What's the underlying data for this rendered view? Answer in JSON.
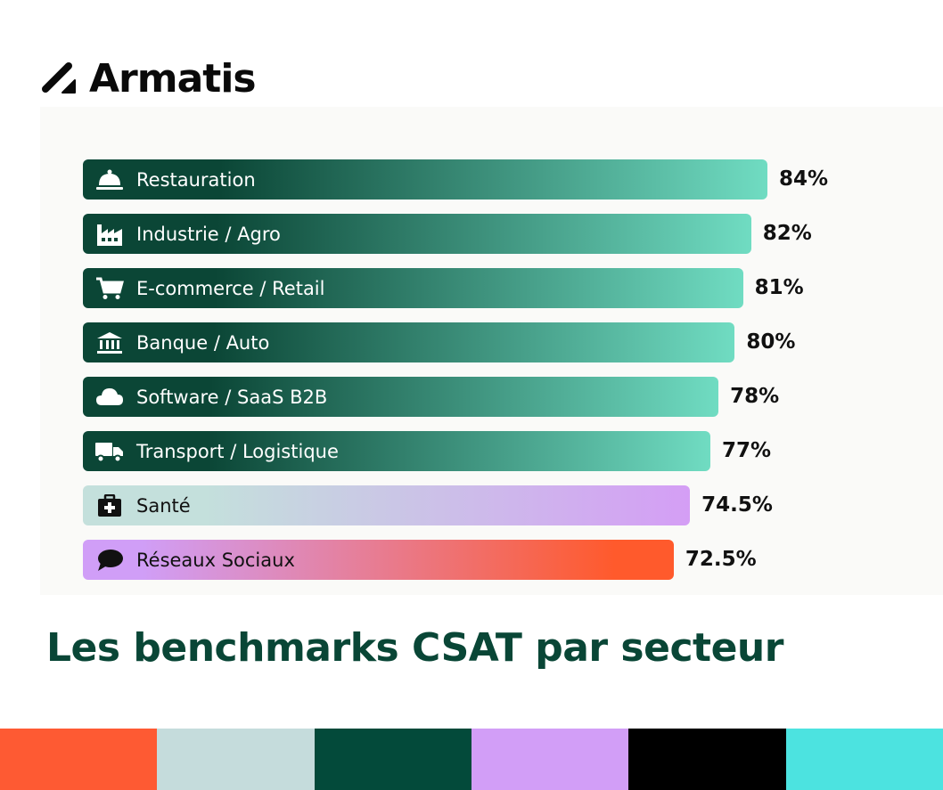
{
  "brand": {
    "name": "Armatis"
  },
  "title": "Les benchmarks CSAT par secteur",
  "chart_data": {
    "type": "bar",
    "orientation": "horizontal",
    "title": "Les benchmarks CSAT par secteur",
    "categories": [
      "Restauration",
      "Industrie / Agro",
      "E-commerce / Retail",
      "Banque / Auto",
      "Software / SaaS B2B",
      "Transport / Logistique",
      "Santé",
      "Réseaux Sociaux"
    ],
    "values": [
      84,
      82,
      81,
      80,
      78,
      77,
      74.5,
      72.5
    ],
    "value_labels": [
      "84%",
      "82%",
      "81%",
      "80%",
      "78%",
      "77%",
      "74.5%",
      "72.5%"
    ],
    "icons": [
      "service-bell-icon",
      "factory-icon",
      "cart-icon",
      "bank-icon",
      "cloud-icon",
      "truck-icon",
      "medical-kit-icon",
      "chat-bubble-icon"
    ],
    "xlim": [
      0,
      84
    ],
    "unit": "%"
  },
  "colors": {
    "green_dark": "#0b4636",
    "green_light": "#70dcc2",
    "sante_start": "#c4e0dc",
    "sante_end": "#d49ef5",
    "social_start": "#d09ef7",
    "social_end": "#ff5a2c",
    "strips": [
      "#fe5a33",
      "#c5dcdc",
      "#034a3a",
      "#d29ef7",
      "#000000",
      "#4ce3e0"
    ]
  }
}
